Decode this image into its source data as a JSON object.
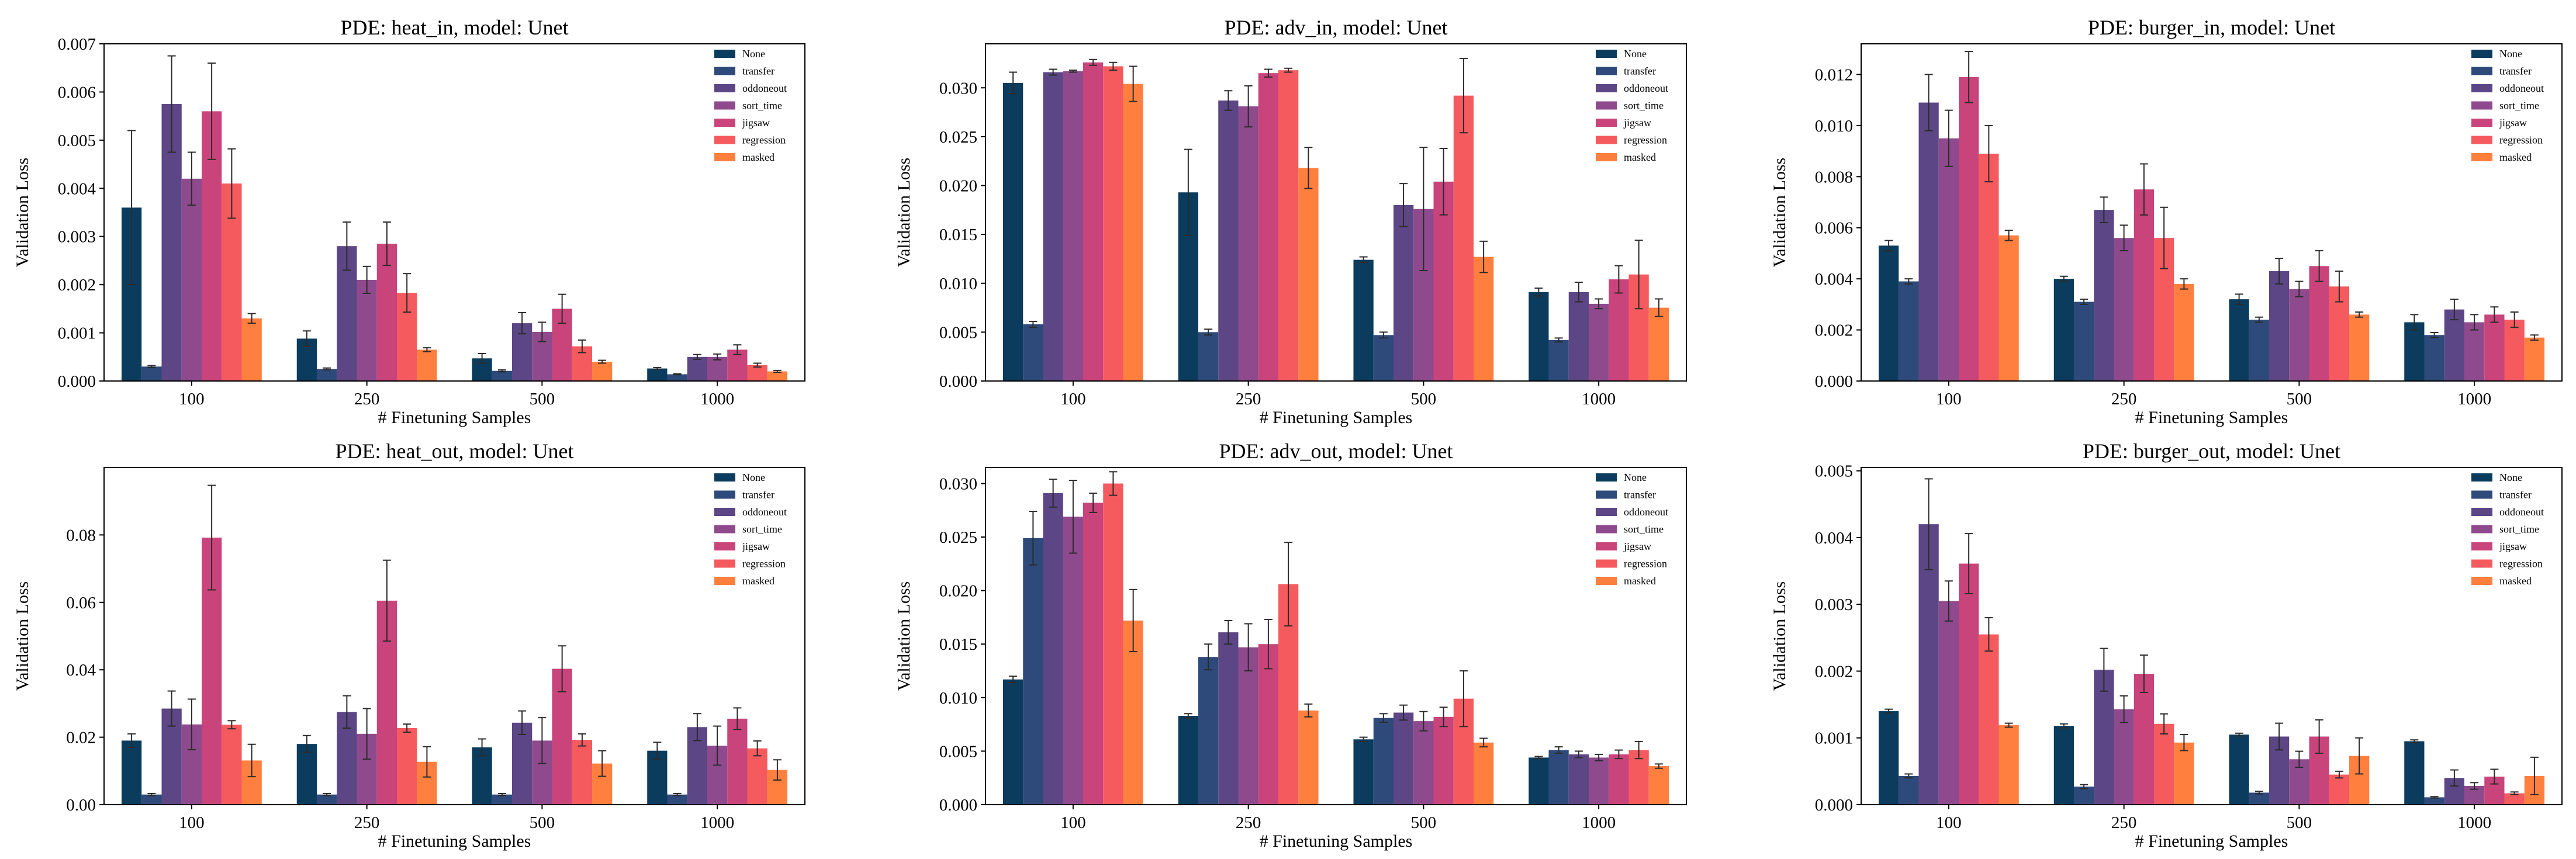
{
  "colors": [
    "#0b3c5d",
    "#2e4a7a",
    "#5c4685",
    "#8e4a8d",
    "#c9447a",
    "#f45a5e",
    "#ff7f3f"
  ],
  "chart_data": [
    {
      "type": "bar",
      "title": "PDE: heat_in, model: Unet",
      "xlabel": "# Finetuning Samples",
      "ylabel": "Validation Loss",
      "categories": [
        "100",
        "250",
        "500",
        "1000"
      ],
      "ylim": [
        0,
        0.007
      ],
      "yticks": [
        0,
        0.001,
        0.002,
        0.003,
        0.004,
        0.005,
        0.006,
        0.007
      ],
      "ytick_labels": [
        "0.000",
        "0.001",
        "0.002",
        "0.003",
        "0.004",
        "0.005",
        "0.006",
        "0.007"
      ],
      "legend_position": "top-right",
      "series": [
        {
          "name": "None",
          "values": [
            0.0036,
            0.00088,
            0.00047,
            0.00026
          ],
          "errors": [
            0.0016,
            0.00016,
            0.0001,
            2e-05
          ]
        },
        {
          "name": "transfer",
          "values": [
            0.0003,
            0.00025,
            0.00021,
            0.00014
          ],
          "errors": [
            2e-05,
            2e-05,
            2e-05,
            1e-05
          ]
        },
        {
          "name": "oddoneout",
          "values": [
            0.00575,
            0.0028,
            0.0012,
            0.0005
          ],
          "errors": [
            0.001,
            0.0005,
            0.00022,
            5e-05
          ]
        },
        {
          "name": "sort_time",
          "values": [
            0.0042,
            0.0021,
            0.00102,
            0.0005
          ],
          "errors": [
            0.00055,
            0.00028,
            0.0002,
            6e-05
          ]
        },
        {
          "name": "jigsaw",
          "values": [
            0.0056,
            0.00285,
            0.0015,
            0.00065
          ],
          "errors": [
            0.001,
            0.00045,
            0.0003,
            0.0001
          ]
        },
        {
          "name": "regression",
          "values": [
            0.0041,
            0.00183,
            0.00072,
            0.00033
          ],
          "errors": [
            0.00072,
            0.0004,
            0.00013,
            4e-05
          ]
        },
        {
          "name": "masked",
          "values": [
            0.0013,
            0.00065,
            0.0004,
            0.0002
          ],
          "errors": [
            0.0001,
            4e-05,
            3e-05,
            2e-05
          ]
        }
      ]
    },
    {
      "type": "bar",
      "title": "PDE: adv_in, model: Unet",
      "xlabel": "# Finetuning Samples",
      "ylabel": "Validation Loss",
      "categories": [
        "100",
        "250",
        "500",
        "1000"
      ],
      "ylim": [
        0,
        0.0345
      ],
      "yticks": [
        0,
        0.005,
        0.01,
        0.015,
        0.02,
        0.025,
        0.03
      ],
      "ytick_labels": [
        "0.000",
        "0.005",
        "0.010",
        "0.015",
        "0.020",
        "0.025",
        "0.030"
      ],
      "legend_position": "top-right",
      "series": [
        {
          "name": "None",
          "values": [
            0.0305,
            0.0193,
            0.0124,
            0.0091
          ],
          "errors": [
            0.0011,
            0.0044,
            0.0003,
            0.0004
          ]
        },
        {
          "name": "transfer",
          "values": [
            0.0058,
            0.005,
            0.0047,
            0.0042
          ],
          "errors": [
            0.0003,
            0.0003,
            0.0003,
            0.0002
          ]
        },
        {
          "name": "oddoneout",
          "values": [
            0.0316,
            0.0287,
            0.018,
            0.0091
          ],
          "errors": [
            0.0003,
            0.001,
            0.0022,
            0.001
          ]
        },
        {
          "name": "sort_time",
          "values": [
            0.0317,
            0.0281,
            0.0176,
            0.0079
          ],
          "errors": [
            0.0001,
            0.0021,
            0.0063,
            0.0005
          ]
        },
        {
          "name": "jigsaw",
          "values": [
            0.0326,
            0.0315,
            0.0204,
            0.0104
          ],
          "errors": [
            0.0003,
            0.0004,
            0.0034,
            0.0014
          ]
        },
        {
          "name": "regression",
          "values": [
            0.0322,
            0.0318,
            0.0292,
            0.0109
          ],
          "errors": [
            0.0004,
            0.0002,
            0.0038,
            0.0035
          ]
        },
        {
          "name": "masked",
          "values": [
            0.0304,
            0.0218,
            0.0127,
            0.0075
          ],
          "errors": [
            0.0018,
            0.0021,
            0.0016,
            0.0009
          ]
        }
      ]
    },
    {
      "type": "bar",
      "title": "PDE: burger_in, model: Unet",
      "xlabel": "# Finetuning Samples",
      "ylabel": "Validation Loss",
      "categories": [
        "100",
        "250",
        "500",
        "1000"
      ],
      "ylim": [
        0,
        0.0132
      ],
      "yticks": [
        0,
        0.002,
        0.004,
        0.006,
        0.008,
        0.01,
        0.012
      ],
      "ytick_labels": [
        "0.000",
        "0.002",
        "0.004",
        "0.006",
        "0.008",
        "0.010",
        "0.012"
      ],
      "legend_position": "top-right",
      "series": [
        {
          "name": "None",
          "values": [
            0.0053,
            0.004,
            0.0032,
            0.0023
          ],
          "errors": [
            0.0002,
            0.0001,
            0.0002,
            0.0003
          ]
        },
        {
          "name": "transfer",
          "values": [
            0.0039,
            0.0031,
            0.0024,
            0.0018
          ],
          "errors": [
            0.0001,
            0.0001,
            0.0001,
            0.0001
          ]
        },
        {
          "name": "oddoneout",
          "values": [
            0.0109,
            0.0067,
            0.0043,
            0.0028
          ],
          "errors": [
            0.0011,
            0.0005,
            0.0005,
            0.0004
          ]
        },
        {
          "name": "sort_time",
          "values": [
            0.0095,
            0.0056,
            0.0036,
            0.0023
          ],
          "errors": [
            0.0011,
            0.0005,
            0.0003,
            0.0003
          ]
        },
        {
          "name": "jigsaw",
          "values": [
            0.0119,
            0.0075,
            0.0045,
            0.0026
          ],
          "errors": [
            0.001,
            0.001,
            0.0006,
            0.0003
          ]
        },
        {
          "name": "regression",
          "values": [
            0.0089,
            0.0056,
            0.0037,
            0.0024
          ],
          "errors": [
            0.0011,
            0.0012,
            0.0006,
            0.0003
          ]
        },
        {
          "name": "masked",
          "values": [
            0.0057,
            0.0038,
            0.0026,
            0.0017
          ],
          "errors": [
            0.0002,
            0.0002,
            0.0001,
            0.0001
          ]
        }
      ]
    },
    {
      "type": "bar",
      "title": "PDE: heat_out, model: Unet",
      "xlabel": "# Finetuning Samples",
      "ylabel": "Validation Loss",
      "categories": [
        "100",
        "250",
        "500",
        "1000"
      ],
      "ylim": [
        0,
        0.1
      ],
      "yticks": [
        0,
        0.02,
        0.04,
        0.06,
        0.08
      ],
      "ytick_labels": [
        "0.00",
        "0.02",
        "0.04",
        "0.06",
        "0.08"
      ],
      "legend_position": "top-right",
      "series": [
        {
          "name": "None",
          "values": [
            0.019,
            0.018,
            0.017,
            0.016
          ],
          "errors": [
            0.002,
            0.0025,
            0.0025,
            0.0025
          ]
        },
        {
          "name": "transfer",
          "values": [
            0.003,
            0.003,
            0.003,
            0.003
          ],
          "errors": [
            0.0003,
            0.0003,
            0.0003,
            0.0003
          ]
        },
        {
          "name": "oddoneout",
          "values": [
            0.0285,
            0.0275,
            0.0243,
            0.023
          ],
          "errors": [
            0.0052,
            0.0048,
            0.0035,
            0.004
          ]
        },
        {
          "name": "sort_time",
          "values": [
            0.0238,
            0.021,
            0.019,
            0.0175
          ],
          "errors": [
            0.0075,
            0.0075,
            0.0068,
            0.0058
          ]
        },
        {
          "name": "jigsaw",
          "values": [
            0.0792,
            0.0605,
            0.0403,
            0.0255
          ],
          "errors": [
            0.0155,
            0.012,
            0.0068,
            0.0032
          ]
        },
        {
          "name": "regression",
          "values": [
            0.0237,
            0.0227,
            0.0192,
            0.0167
          ],
          "errors": [
            0.0012,
            0.0012,
            0.0018,
            0.0022
          ]
        },
        {
          "name": "masked",
          "values": [
            0.0131,
            0.0127,
            0.0122,
            0.0103
          ],
          "errors": [
            0.0048,
            0.0045,
            0.0038,
            0.003
          ]
        }
      ]
    },
    {
      "type": "bar",
      "title": "PDE: adv_out, model: Unet",
      "xlabel": "# Finetuning Samples",
      "ylabel": "Validation Loss",
      "categories": [
        "100",
        "250",
        "500",
        "1000"
      ],
      "ylim": [
        0,
        0.0315
      ],
      "yticks": [
        0,
        0.005,
        0.01,
        0.015,
        0.02,
        0.025,
        0.03
      ],
      "ytick_labels": [
        "0.000",
        "0.005",
        "0.010",
        "0.015",
        "0.020",
        "0.025",
        "0.030"
      ],
      "legend_position": "top-right",
      "series": [
        {
          "name": "None",
          "values": [
            0.0117,
            0.0083,
            0.0061,
            0.0044
          ],
          "errors": [
            0.0003,
            0.0002,
            0.0002,
            0.0001
          ]
        },
        {
          "name": "transfer",
          "values": [
            0.0249,
            0.0138,
            0.0081,
            0.0051
          ],
          "errors": [
            0.0025,
            0.0012,
            0.0004,
            0.0003
          ]
        },
        {
          "name": "oddoneout",
          "values": [
            0.0291,
            0.0161,
            0.0086,
            0.0047
          ],
          "errors": [
            0.0013,
            0.0011,
            0.0007,
            0.0003
          ]
        },
        {
          "name": "sort_time",
          "values": [
            0.0269,
            0.0147,
            0.0078,
            0.0044
          ],
          "errors": [
            0.0034,
            0.0022,
            0.0009,
            0.0003
          ]
        },
        {
          "name": "jigsaw",
          "values": [
            0.0282,
            0.015,
            0.0082,
            0.0047
          ],
          "errors": [
            0.0009,
            0.0023,
            0.0009,
            0.0004
          ]
        },
        {
          "name": "regression",
          "values": [
            0.03,
            0.0206,
            0.0099,
            0.0051
          ],
          "errors": [
            0.0011,
            0.0039,
            0.0026,
            0.0008
          ]
        },
        {
          "name": "masked",
          "values": [
            0.0172,
            0.0088,
            0.0058,
            0.0036
          ],
          "errors": [
            0.0029,
            0.0006,
            0.0004,
            0.0002
          ]
        }
      ]
    },
    {
      "type": "bar",
      "title": "PDE: burger_out, model: Unet",
      "xlabel": "# Finetuning Samples",
      "ylabel": "Validation Loss",
      "categories": [
        "100",
        "250",
        "500",
        "1000"
      ],
      "ylim": [
        0,
        0.00505
      ],
      "yticks": [
        0,
        0.001,
        0.002,
        0.003,
        0.004,
        0.005
      ],
      "ytick_labels": [
        "0.000",
        "0.001",
        "0.002",
        "0.003",
        "0.004",
        "0.005"
      ],
      "legend_position": "top-right",
      "series": [
        {
          "name": "None",
          "values": [
            0.0014,
            0.00118,
            0.00105,
            0.00095
          ],
          "errors": [
            3e-05,
            3e-05,
            2e-05,
            2e-05
          ]
        },
        {
          "name": "transfer",
          "values": [
            0.00043,
            0.00027,
            0.00018,
            0.00011
          ],
          "errors": [
            3e-05,
            3e-05,
            2e-05,
            1e-05
          ]
        },
        {
          "name": "oddoneout",
          "values": [
            0.0042,
            0.00202,
            0.00102,
            0.0004
          ],
          "errors": [
            0.00068,
            0.00032,
            0.0002,
            0.00012
          ]
        },
        {
          "name": "sort_time",
          "values": [
            0.00305,
            0.00143,
            0.00068,
            0.00028
          ],
          "errors": [
            0.0003,
            0.0002,
            0.00012,
            5e-05
          ]
        },
        {
          "name": "jigsaw",
          "values": [
            0.00361,
            0.00196,
            0.00102,
            0.00042
          ],
          "errors": [
            0.00045,
            0.00028,
            0.00025,
            0.00011
          ]
        },
        {
          "name": "regression",
          "values": [
            0.00255,
            0.00121,
            0.00045,
            0.00017
          ],
          "errors": [
            0.00025,
            0.00015,
            5e-05,
            2e-05
          ]
        },
        {
          "name": "masked",
          "values": [
            0.00119,
            0.00093,
            0.00073,
            0.00043
          ],
          "errors": [
            3e-05,
            0.00012,
            0.00027,
            0.00028
          ]
        }
      ]
    }
  ]
}
